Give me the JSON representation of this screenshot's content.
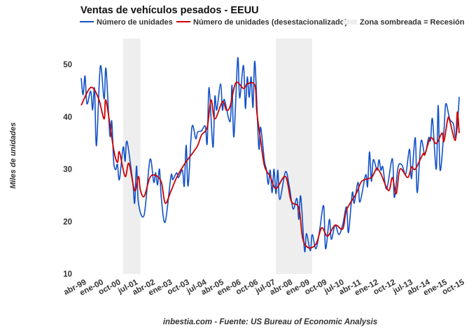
{
  "chart_data": {
    "type": "line",
    "title": "Ventas de vehículos pesados - EEUU",
    "ylabel": "Miles de unidades",
    "xlabel": "",
    "ylim": [
      10,
      55
    ],
    "yticks": [
      10,
      20,
      30,
      40,
      50
    ],
    "xlim": [
      "1999-04",
      "2015-10"
    ],
    "xtick_labels": [
      "abr-99",
      "ene-00",
      "oct-00",
      "jul-01",
      "abr-02",
      "ene-03",
      "oct-03",
      "jul-04",
      "abr-05",
      "ene-06",
      "oct-06",
      "jul-07",
      "abr-08",
      "ene-09",
      "oct-09",
      "jul-10",
      "abr-11",
      "ene-12",
      "oct-12",
      "jul-13",
      "abr-14",
      "ene-15",
      "oct-15"
    ],
    "grid": false,
    "legend_position": "top",
    "recession_label": "Zona sombreada = Recesión",
    "recession_color": "#eeeeee",
    "recessions": [
      [
        "2001-02",
        "2001-11"
      ],
      [
        "2007-10",
        "2009-05"
      ]
    ],
    "source": "inbestia.com - Fuente: US Bureau of Economic Analysis",
    "series": [
      {
        "name": "Número de unidades",
        "color": "#1150c8",
        "x": [
          "1999-04",
          "1999-05",
          "1999-06",
          "1999-07",
          "1999-09",
          "1999-10",
          "1999-11",
          "1999-12",
          "2000-02",
          "2000-04",
          "2000-05",
          "2000-07",
          "2000-08",
          "2000-09",
          "2000-10",
          "2000-11",
          "2000-12",
          "2001-02",
          "2001-03",
          "2001-04",
          "2001-07",
          "2001-08",
          "2001-09",
          "2001-10",
          "2002-01",
          "2002-04",
          "2002-06",
          "2002-07",
          "2002-08",
          "2002-09",
          "2002-10",
          "2002-12",
          "2003-03",
          "2003-04",
          "2003-06",
          "2003-07",
          "2003-09",
          "2003-10",
          "2003-11",
          "2003-12",
          "2004-02",
          "2004-04",
          "2004-05",
          "2004-07",
          "2004-09",
          "2004-10",
          "2004-11",
          "2005-01",
          "2005-02",
          "2005-03",
          "2005-05",
          "2005-06",
          "2005-07",
          "2005-10",
          "2005-11",
          "2005-12",
          "2006-02",
          "2006-03",
          "2006-05",
          "2006-06",
          "2006-07",
          "2006-08",
          "2006-09",
          "2006-10",
          "2006-11",
          "2007-01",
          "2007-02",
          "2007-04",
          "2007-05",
          "2007-06",
          "2007-07",
          "2007-08",
          "2007-09",
          "2007-10",
          "2007-11",
          "2007-12",
          "2008-03",
          "2008-05",
          "2008-07",
          "2008-09",
          "2008-10",
          "2008-11",
          "2009-01",
          "2009-02",
          "2009-04",
          "2009-05",
          "2009-07",
          "2009-09",
          "2009-11",
          "2009-12",
          "2010-02",
          "2010-03",
          "2010-05",
          "2010-07",
          "2010-09",
          "2010-11",
          "2010-12",
          "2011-02",
          "2011-03",
          "2011-05",
          "2011-06",
          "2011-09",
          "2011-10",
          "2011-11",
          "2011-12",
          "2012-01",
          "2012-03",
          "2012-04",
          "2012-05",
          "2012-06",
          "2012-08",
          "2012-11",
          "2012-12",
          "2013-02",
          "2013-04",
          "2013-06",
          "2013-08",
          "2013-09",
          "2013-11",
          "2013-12",
          "2014-02",
          "2014-04",
          "2014-06",
          "2014-07",
          "2014-08",
          "2014-10",
          "2014-11",
          "2014-12",
          "2015-02",
          "2015-03",
          "2015-05",
          "2015-07",
          "2015-08",
          "2015-09",
          "2015-10"
        ],
        "y": [
          47.4,
          44.2,
          47.8,
          42.5,
          44.9,
          41.3,
          45.4,
          34.5,
          49.6,
          43.4,
          49.2,
          36.5,
          39.2,
          31.5,
          29.9,
          30.9,
          28.0,
          34.2,
          31.5,
          35.3,
          27.5,
          23.5,
          30.6,
          23.5,
          21.3,
          31.8,
          27.5,
          29.3,
          27.0,
          30.0,
          24.4,
          19.9,
          28.6,
          28.0,
          29.3,
          28.4,
          29.8,
          26.8,
          34.6,
          26.8,
          38.0,
          35.8,
          37.1,
          37.3,
          38.2,
          34.9,
          45.6,
          34.2,
          43.8,
          41.3,
          46.3,
          41.3,
          43.3,
          39.1,
          46.0,
          36.2,
          51.2,
          43.6,
          49.8,
          41.6,
          47.6,
          43.7,
          47.6,
          41.8,
          50.5,
          34.2,
          38.0,
          31.5,
          30.0,
          27.1,
          29.8,
          25.5,
          30.0,
          25.3,
          29.8,
          24.2,
          29.5,
          26.7,
          22.4,
          24.4,
          20.4,
          24.8,
          14.4,
          17.7,
          14.4,
          17.5,
          14.8,
          18.6,
          23.0,
          14.8,
          20.4,
          16.6,
          19.3,
          17.5,
          19.4,
          22.8,
          17.9,
          25.5,
          23.5,
          27.5,
          23.7,
          28.9,
          26.7,
          33.3,
          27.7,
          31.8,
          29.8,
          31.8,
          29.8,
          30.4,
          26.2,
          32.0,
          24.6,
          30.4,
          30.8,
          29.1,
          33.8,
          28.2,
          36.0,
          25.5,
          35.3,
          32.8,
          36.0,
          35.5,
          39.6,
          30.0,
          42.2,
          29.8,
          37.3,
          42.5,
          39.6,
          38.6,
          36.0,
          38.1,
          43.8
        ]
      },
      {
        "name": "Número de unidades (desestacionalizado)",
        "color": "#cc0000",
        "x": [
          "1999-04",
          "1999-09",
          "2000-01",
          "2000-04",
          "2000-05",
          "2000-09",
          "2000-11",
          "2000-12",
          "2001-03",
          "2001-05",
          "2001-08",
          "2001-10",
          "2001-11",
          "2002-01",
          "2002-04",
          "2002-07",
          "2002-10",
          "2002-12",
          "2003-03",
          "2003-06",
          "2003-10",
          "2004-02",
          "2004-05",
          "2004-07",
          "2004-10",
          "2004-12",
          "2005-02",
          "2005-06",
          "2005-08",
          "2005-10",
          "2006-01",
          "2006-05",
          "2006-07",
          "2006-11",
          "2006-12",
          "2007-02",
          "2007-04",
          "2007-07",
          "2007-10",
          "2008-03",
          "2008-06",
          "2008-10",
          "2008-12",
          "2009-03",
          "2009-07",
          "2009-10",
          "2010-01",
          "2010-05",
          "2010-09",
          "2010-11",
          "2011-04",
          "2011-07",
          "2011-12",
          "2012-02",
          "2012-03",
          "2012-05",
          "2012-09",
          "2012-11",
          "2013-01",
          "2013-03",
          "2013-07",
          "2013-09",
          "2013-11",
          "2014-03",
          "2014-04",
          "2014-07",
          "2014-10",
          "2015-01",
          "2015-02",
          "2015-04",
          "2015-05",
          "2015-08",
          "2015-09",
          "2015-10"
        ],
        "y": [
          42.2,
          45.6,
          43.6,
          39.6,
          43.1,
          33.8,
          31.3,
          33.3,
          28.6,
          31.1,
          25.9,
          28.6,
          26.0,
          24.8,
          28.4,
          28.8,
          27.5,
          23.5,
          25.8,
          28.4,
          30.9,
          32.9,
          34.5,
          36.5,
          38.0,
          43.2,
          39.6,
          42.9,
          41.3,
          42.0,
          46.5,
          45.4,
          46.3,
          46.0,
          40.9,
          35.5,
          30.6,
          28.6,
          26.3,
          28.6,
          23.9,
          22.6,
          16.8,
          15.0,
          15.7,
          18.8,
          17.2,
          19.3,
          18.6,
          22.2,
          25.3,
          27.7,
          28.4,
          29.7,
          30.2,
          29.1,
          25.9,
          28.4,
          25.3,
          30.0,
          28.4,
          30.4,
          30.0,
          32.9,
          32.8,
          36.0,
          34.9,
          36.9,
          35.3,
          39.6,
          39.3,
          35.5,
          40.9,
          36.9
        ]
      }
    ]
  }
}
